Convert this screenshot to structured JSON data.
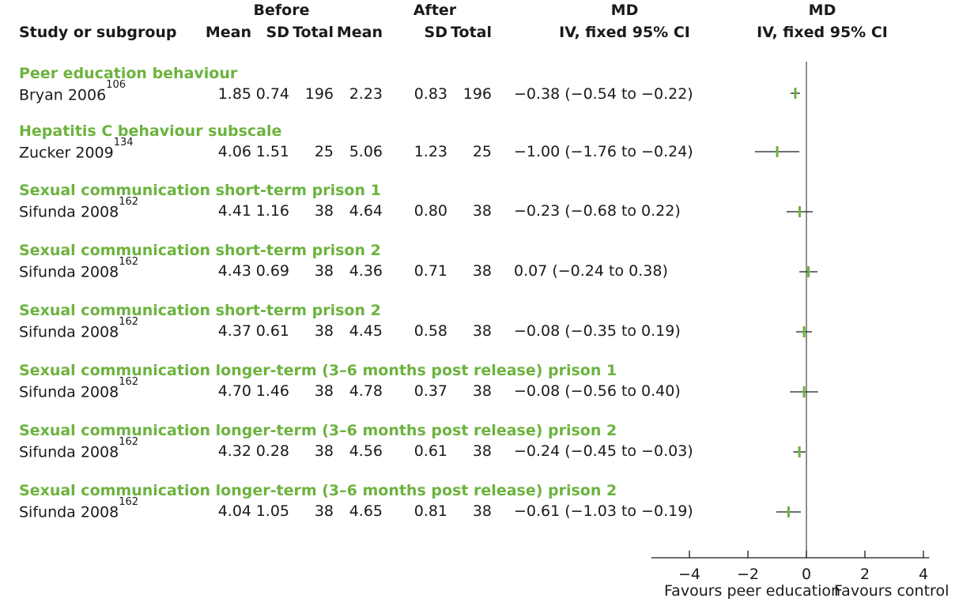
{
  "headers": {
    "study": "Study or subgroup",
    "before": "Before",
    "after": "After",
    "mean": "Mean",
    "sd": "SD",
    "total": "Total",
    "md1": "MD",
    "md1_sub": "IV, fixed 95% CI",
    "md2": "MD",
    "md2_sub": "IV, fixed 95% CI"
  },
  "colors": {
    "group": "#6cb33e",
    "marker": "#6cb33e",
    "line": "#1a1a1a"
  },
  "rows": [
    {
      "group": "Peer education behaviour",
      "study": "Bryan 2006",
      "ref": "106",
      "b_mean": "1.85",
      "b_sd": "0.74",
      "b_total": "196",
      "a_mean": "2.23",
      "a_sd": "0.83",
      "a_total": "196",
      "ci_text": "−0.38 (−0.54 to −0.22)"
    },
    {
      "group": "Hepatitis C behaviour subscale",
      "study": "Zucker 2009",
      "ref": "134",
      "b_mean": "4.06",
      "b_sd": "1.51",
      "b_total": "25",
      "a_mean": "5.06",
      "a_sd": "1.23",
      "a_total": "25",
      "ci_text": "−1.00 (−1.76 to −0.24)"
    },
    {
      "group": "Sexual communication short-term prison 1",
      "study": "Sifunda 2008",
      "ref": "162",
      "b_mean": "4.41",
      "b_sd": "1.16",
      "b_total": "38",
      "a_mean": "4.64",
      "a_sd": "0.80",
      "a_total": "38",
      "ci_text": "−0.23 (−0.68 to 0.22)"
    },
    {
      "group": "Sexual communication short-term prison 2",
      "study": "Sifunda 2008",
      "ref": "162",
      "b_mean": "4.43",
      "b_sd": "0.69",
      "b_total": "38",
      "a_mean": "4.36",
      "a_sd": "0.71",
      "a_total": "38",
      "ci_text": "0.07 (−0.24 to 0.38)"
    },
    {
      "group": "Sexual communication short-term prison 2",
      "study": "Sifunda 2008",
      "ref": "162",
      "b_mean": "4.37",
      "b_sd": "0.61",
      "b_total": "38",
      "a_mean": "4.45",
      "a_sd": "0.58",
      "a_total": "38",
      "ci_text": "−0.08 (−0.35 to 0.19)"
    },
    {
      "group": "Sexual communication longer-term (3–6 months post release) prison 1",
      "study": "Sifunda 2008",
      "ref": "162",
      "b_mean": "4.70",
      "b_sd": "1.46",
      "b_total": "38",
      "a_mean": "4.78",
      "a_sd": "0.37",
      "a_total": "38",
      "ci_text": "−0.08 (−0.56 to 0.40)"
    },
    {
      "group": "Sexual communication longer-term (3–6 months post release) prison 2",
      "study": "Sifunda 2008",
      "ref": "162",
      "b_mean": "4.32",
      "b_sd": "0.28",
      "b_total": "38",
      "a_mean": "4.56",
      "a_sd": "0.61",
      "a_total": "38",
      "ci_text": "−0.24 (−0.45 to −0.03)"
    },
    {
      "group": "Sexual communication longer-term (3–6 months post release) prison 2",
      "study": "Sifunda 2008",
      "ref": "162",
      "b_mean": "4.04",
      "b_sd": "1.05",
      "b_total": "38",
      "a_mean": "4.65",
      "a_sd": "0.81",
      "a_total": "38",
      "ci_text": "−0.61 (−1.03 to −0.19)"
    }
  ],
  "chart_data": {
    "type": "scatter",
    "subtype": "forest-plot",
    "xlim": [
      -5.3,
      4.2
    ],
    "xticks": [
      -4,
      -2,
      0,
      2,
      4
    ],
    "xtick_labels": [
      "−4",
      "−2",
      "0",
      "2",
      "4"
    ],
    "reference_line": 0,
    "favours_left": "Favours peer education",
    "favours_right": "Favours control",
    "points": [
      {
        "md": -0.38,
        "lo": -0.54,
        "hi": -0.22
      },
      {
        "md": -1.0,
        "lo": -1.76,
        "hi": -0.24
      },
      {
        "md": -0.23,
        "lo": -0.68,
        "hi": 0.22
      },
      {
        "md": 0.07,
        "lo": -0.24,
        "hi": 0.38
      },
      {
        "md": -0.08,
        "lo": -0.35,
        "hi": 0.19
      },
      {
        "md": -0.08,
        "lo": -0.56,
        "hi": 0.4
      },
      {
        "md": -0.24,
        "lo": -0.45,
        "hi": -0.03
      },
      {
        "md": -0.61,
        "lo": -1.03,
        "hi": -0.19
      }
    ]
  }
}
